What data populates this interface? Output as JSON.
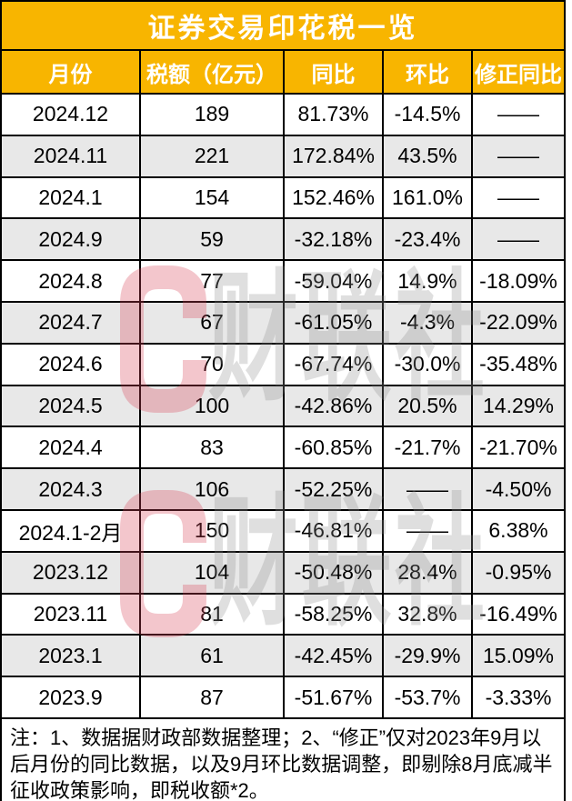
{
  "chart_data": {
    "type": "table",
    "title": "证券交易印花税一览",
    "columns": [
      "月份",
      "税额（亿元）",
      "同比",
      "环比",
      "修正同比"
    ],
    "rows": [
      [
        "2024.12",
        "189",
        "81.73%",
        "-14.5%",
        "——"
      ],
      [
        "2024.11",
        "221",
        "172.84%",
        "43.5%",
        "——"
      ],
      [
        "2024.1",
        "154",
        "152.46%",
        "161.0%",
        "——"
      ],
      [
        "2024.9",
        "59",
        "-32.18%",
        "-23.4%",
        "——"
      ],
      [
        "2024.8",
        "77",
        "-59.04%",
        "14.9%",
        "-18.09%"
      ],
      [
        "2024.7",
        "67",
        "-61.05%",
        "-4.3%",
        "-22.09%"
      ],
      [
        "2024.6",
        "70",
        "-67.74%",
        "-30.0%",
        "-35.48%"
      ],
      [
        "2024.5",
        "100",
        "-42.86%",
        "20.5%",
        "14.29%"
      ],
      [
        "2024.4",
        "83",
        "-60.85%",
        "-21.7%",
        "-21.70%"
      ],
      [
        "2024.3",
        "106",
        "-52.25%",
        "——",
        "-4.50%"
      ],
      [
        "2024.1-2月",
        "150",
        "-46.81%",
        "——",
        "6.38%"
      ],
      [
        "2023.12",
        "104",
        "-50.48%",
        "28.4%",
        "-0.95%"
      ],
      [
        "2023.11",
        "81",
        "-58.25%",
        "32.8%",
        "-16.49%"
      ],
      [
        "2023.1",
        "61",
        "-42.45%",
        "-29.9%",
        "15.09%"
      ],
      [
        "2023.9",
        "87",
        "-51.67%",
        "-53.7%",
        "-3.33%"
      ]
    ]
  },
  "note": "注：1、数据据财政部数据整理；2、“修正”仅对2023年9月以后月份的同比数据，以及9月环比数据调整，即剔除8月底减半征收政策影响，即税收额*2。",
  "watermark": {
    "logo": "C",
    "text": "财联社"
  },
  "colors": {
    "header_bg": "#F8B500",
    "header_text": "#FFFFFF",
    "row_alt_bg": "#E8E8E8",
    "border": "#000000",
    "watermark_red": "#D9445A",
    "watermark_gray": "#8F8F8F"
  }
}
